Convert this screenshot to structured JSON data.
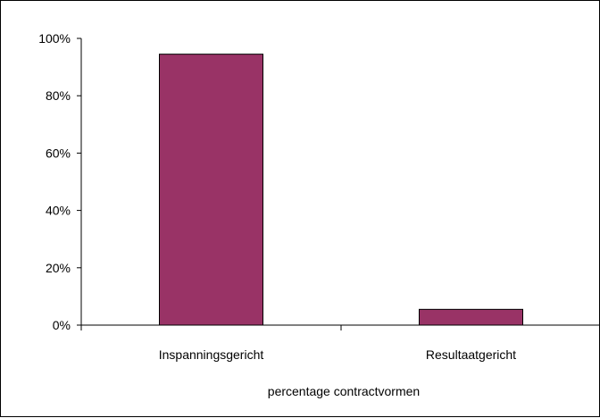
{
  "chart_data": {
    "type": "bar",
    "title": "",
    "xlabel": "percentage contractvormen",
    "ylabel": "",
    "categories": [
      "Inspanningsgericht",
      "Resultaatgericht"
    ],
    "values": [
      94.5,
      5.5
    ],
    "ylim": [
      0,
      100
    ],
    "yticks": [
      0,
      20,
      40,
      60,
      80,
      100
    ],
    "ytick_labels": [
      "0%",
      "20%",
      "40%",
      "60%",
      "80%",
      "100%"
    ],
    "grid": false,
    "legend": "none",
    "bar_color": "#993366",
    "bar_edge_color": "#000000"
  }
}
